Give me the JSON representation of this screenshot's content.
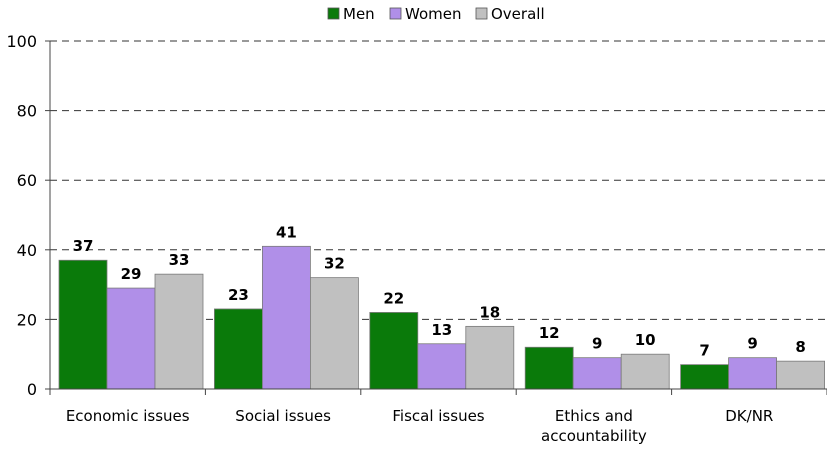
{
  "chart_data": {
    "type": "bar",
    "categories": [
      [
        "Economic issues"
      ],
      [
        "Social issues"
      ],
      [
        "Fiscal issues"
      ],
      [
        "Ethics and",
        "accountability"
      ],
      [
        "DK/NR"
      ]
    ],
    "series": [
      {
        "name": "Men",
        "color": "#0a7a0a",
        "values": [
          37,
          23,
          22,
          12,
          7
        ]
      },
      {
        "name": "Women",
        "color": "#b08fe8",
        "values": [
          29,
          41,
          13,
          9,
          9
        ]
      },
      {
        "name": "Overall",
        "color": "#c0c0c0",
        "values": [
          33,
          32,
          18,
          10,
          8
        ]
      }
    ],
    "ylim": [
      0,
      100
    ],
    "yticks": [
      0,
      20,
      40,
      60,
      80,
      100
    ],
    "grid": true,
    "legend_position": "top-center"
  }
}
